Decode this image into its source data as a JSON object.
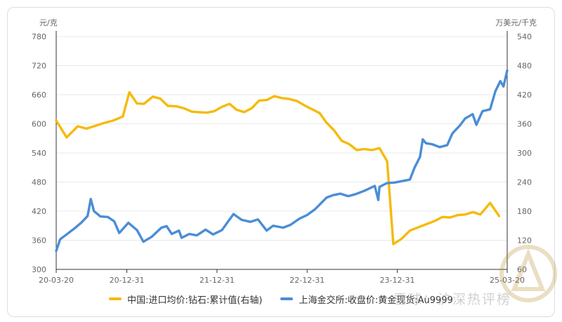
{
  "watermark": "雪球：沪深热评榜",
  "chart_data": {
    "type": "line",
    "y_left": {
      "unit": "元/克",
      "ticks": [
        300,
        360,
        420,
        480,
        540,
        600,
        660,
        720,
        780
      ],
      "range": [
        300,
        780
      ]
    },
    "y_right": {
      "unit": "万美元/千克",
      "ticks": [
        60,
        120,
        180,
        240,
        300,
        360,
        420,
        480,
        540
      ],
      "range": [
        60,
        540
      ]
    },
    "x_ticks": [
      "20-03-20",
      "20-12-31",
      "21-12-31",
      "22-12-31",
      "23-12-31",
      "25-03-20"
    ],
    "x_tick_dates": [
      "2020-03-20",
      "2020-12-31",
      "2021-12-31",
      "2022-12-31",
      "2023-12-31",
      "2025-03-20"
    ],
    "grid": true,
    "legend_position": "bottom",
    "series": [
      {
        "name": "中国:进口均价:钻石:累计值(右轴)",
        "axis": "right",
        "color": "#F5BA0A",
        "points": [
          [
            "2020-03-20",
            367
          ],
          [
            "2020-05-01",
            332
          ],
          [
            "2020-06-15",
            355
          ],
          [
            "2020-07-20",
            350
          ],
          [
            "2020-09-01",
            357
          ],
          [
            "2020-10-01",
            362
          ],
          [
            "2020-11-01",
            366
          ],
          [
            "2020-12-01",
            372
          ],
          [
            "2020-12-15",
            375
          ],
          [
            "2021-01-10",
            425
          ],
          [
            "2021-02-10",
            402
          ],
          [
            "2021-03-10",
            401
          ],
          [
            "2021-04-15",
            416
          ],
          [
            "2021-05-15",
            412
          ],
          [
            "2021-06-15",
            397
          ],
          [
            "2021-07-20",
            396
          ],
          [
            "2021-08-20",
            392
          ],
          [
            "2021-09-20",
            385
          ],
          [
            "2021-10-20",
            384
          ],
          [
            "2021-11-20",
            383
          ],
          [
            "2021-12-20",
            386
          ],
          [
            "2022-01-20",
            395
          ],
          [
            "2022-02-20",
            401
          ],
          [
            "2022-03-20",
            389
          ],
          [
            "2022-04-20",
            384
          ],
          [
            "2022-05-20",
            392
          ],
          [
            "2022-06-20",
            408
          ],
          [
            "2022-07-20",
            409
          ],
          [
            "2022-08-20",
            417
          ],
          [
            "2022-09-20",
            413
          ],
          [
            "2022-10-20",
            411
          ],
          [
            "2022-11-20",
            407
          ],
          [
            "2022-12-20",
            398
          ],
          [
            "2023-01-20",
            390
          ],
          [
            "2023-02-20",
            382
          ],
          [
            "2023-03-20",
            362
          ],
          [
            "2023-04-20",
            346
          ],
          [
            "2023-05-20",
            325
          ],
          [
            "2023-06-20",
            318
          ],
          [
            "2023-07-20",
            306
          ],
          [
            "2023-08-20",
            308
          ],
          [
            "2023-09-20",
            306
          ],
          [
            "2023-10-20",
            310
          ],
          [
            "2023-11-20",
            283
          ],
          [
            "2023-12-15",
            112
          ],
          [
            "2024-01-15",
            122
          ],
          [
            "2024-02-20",
            140
          ],
          [
            "2024-04-01",
            148
          ],
          [
            "2024-06-01",
            160
          ],
          [
            "2024-07-01",
            168
          ],
          [
            "2024-08-01",
            167
          ],
          [
            "2024-09-01",
            172
          ],
          [
            "2024-10-01",
            173
          ],
          [
            "2024-11-01",
            178
          ],
          [
            "2024-12-01",
            173
          ],
          [
            "2025-01-10",
            197
          ],
          [
            "2025-02-15",
            170
          ]
        ]
      },
      {
        "name": "上海金交所:收盘价:黄金现货:Au9999",
        "axis": "left",
        "color": "#4B8DD6",
        "points": [
          [
            "2020-03-20",
            338
          ],
          [
            "2020-04-05",
            362
          ],
          [
            "2020-05-01",
            372
          ],
          [
            "2020-06-01",
            384
          ],
          [
            "2020-07-01",
            397
          ],
          [
            "2020-07-25",
            410
          ],
          [
            "2020-08-07",
            445
          ],
          [
            "2020-08-20",
            420
          ],
          [
            "2020-09-15",
            409
          ],
          [
            "2020-10-15",
            408
          ],
          [
            "2020-11-10",
            399
          ],
          [
            "2020-11-30",
            375
          ],
          [
            "2021-01-06",
            396
          ],
          [
            "2021-02-10",
            381
          ],
          [
            "2021-03-08",
            357
          ],
          [
            "2021-04-10",
            367
          ],
          [
            "2021-05-20",
            386
          ],
          [
            "2021-06-10",
            389
          ],
          [
            "2021-07-01",
            373
          ],
          [
            "2021-07-30",
            380
          ],
          [
            "2021-08-10",
            365
          ],
          [
            "2021-09-10",
            373
          ],
          [
            "2021-10-10",
            370
          ],
          [
            "2021-11-15",
            382
          ],
          [
            "2021-12-15",
            372
          ],
          [
            "2022-01-20",
            381
          ],
          [
            "2022-03-08",
            414
          ],
          [
            "2022-04-10",
            402
          ],
          [
            "2022-05-15",
            398
          ],
          [
            "2022-06-15",
            403
          ],
          [
            "2022-07-20",
            380
          ],
          [
            "2022-08-15",
            390
          ],
          [
            "2022-09-25",
            386
          ],
          [
            "2022-10-25",
            392
          ],
          [
            "2022-12-01",
            405
          ],
          [
            "2022-12-31",
            412
          ],
          [
            "2023-02-01",
            424
          ],
          [
            "2023-03-20",
            448
          ],
          [
            "2023-04-15",
            453
          ],
          [
            "2023-05-15",
            456
          ],
          [
            "2023-06-15",
            451
          ],
          [
            "2023-07-15",
            455
          ],
          [
            "2023-08-20",
            462
          ],
          [
            "2023-10-01",
            472
          ],
          [
            "2023-10-15",
            443
          ],
          [
            "2023-10-20",
            470
          ],
          [
            "2023-11-20",
            478
          ],
          [
            "2023-12-20",
            479
          ],
          [
            "2024-01-30",
            483
          ],
          [
            "2024-02-20",
            485
          ],
          [
            "2024-03-10",
            510
          ],
          [
            "2024-04-01",
            532
          ],
          [
            "2024-04-12",
            568
          ],
          [
            "2024-04-25",
            560
          ],
          [
            "2024-05-20",
            558
          ],
          [
            "2024-06-20",
            552
          ],
          [
            "2024-07-20",
            556
          ],
          [
            "2024-08-10",
            580
          ],
          [
            "2024-09-10",
            597
          ],
          [
            "2024-10-01",
            611
          ],
          [
            "2024-10-31",
            620
          ],
          [
            "2024-11-15",
            598
          ],
          [
            "2024-12-10",
            626
          ],
          [
            "2025-01-10",
            630
          ],
          [
            "2025-01-31",
            667
          ],
          [
            "2025-02-20",
            688
          ],
          [
            "2025-03-05",
            677
          ],
          [
            "2025-03-20",
            710
          ]
        ]
      }
    ]
  }
}
